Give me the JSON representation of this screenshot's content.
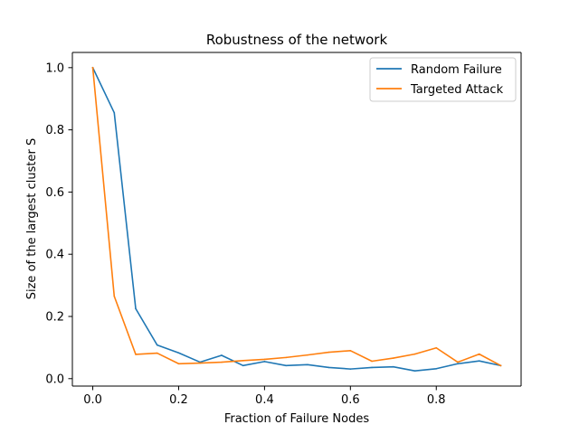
{
  "chart_data": {
    "type": "line",
    "title": "Robustness of the network",
    "xlabel": "Fraction of Failure Nodes",
    "ylabel": "Size of the largest cluster S",
    "xlim": [
      -0.0475,
      0.9975
    ],
    "ylim": [
      -0.0239,
      1.0489
    ],
    "xticks": [
      {
        "value": 0.0,
        "label": "0.0"
      },
      {
        "value": 0.2,
        "label": "0.2"
      },
      {
        "value": 0.4,
        "label": "0.4"
      },
      {
        "value": 0.6,
        "label": "0.6"
      },
      {
        "value": 0.8,
        "label": "0.8"
      }
    ],
    "yticks": [
      {
        "value": 0.0,
        "label": "0.0"
      },
      {
        "value": 0.2,
        "label": "0.2"
      },
      {
        "value": 0.4,
        "label": "0.4"
      },
      {
        "value": 0.6,
        "label": "0.6"
      },
      {
        "value": 0.8,
        "label": "0.8"
      },
      {
        "value": 1.0,
        "label": "1.0"
      }
    ],
    "x": [
      0.0,
      0.05,
      0.1,
      0.15,
      0.2,
      0.25,
      0.3,
      0.35,
      0.4,
      0.45,
      0.5,
      0.55,
      0.6,
      0.65,
      0.7,
      0.75,
      0.8,
      0.85,
      0.9,
      0.95
    ],
    "series": [
      {
        "name": "Random Failure",
        "color": "#1f77b4",
        "values": [
          1.0,
          0.855,
          0.225,
          0.108,
          0.083,
          0.053,
          0.075,
          0.042,
          0.055,
          0.042,
          0.045,
          0.036,
          0.031,
          0.036,
          0.038,
          0.025,
          0.032,
          0.048,
          0.057,
          0.042
        ]
      },
      {
        "name": "Targeted Attack",
        "color": "#ff7f0e",
        "values": [
          1.0,
          0.265,
          0.078,
          0.082,
          0.048,
          0.05,
          0.053,
          0.058,
          0.062,
          0.068,
          0.076,
          0.085,
          0.09,
          0.056,
          0.066,
          0.079,
          0.099,
          0.053,
          0.079,
          0.042
        ]
      }
    ],
    "grid": false,
    "legend_position": "top-right"
  }
}
